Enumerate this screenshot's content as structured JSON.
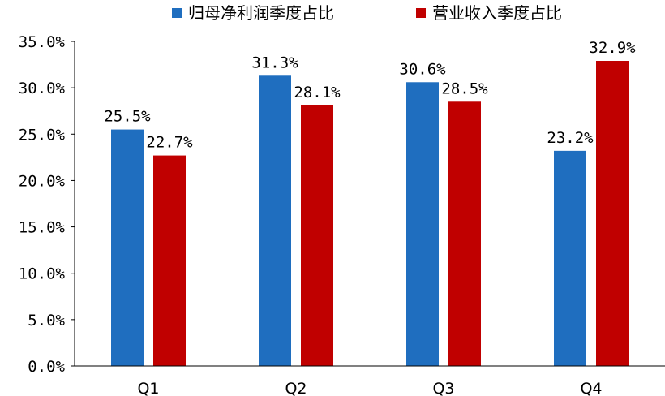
{
  "chart_data": {
    "type": "bar",
    "categories": [
      "Q1",
      "Q2",
      "Q3",
      "Q4"
    ],
    "series": [
      {
        "name": "归母净利润季度占比",
        "values": [
          25.5,
          31.3,
          30.6,
          23.2
        ],
        "labels": [
          "25.5%",
          "31.3%",
          "30.6%",
          "23.2%"
        ],
        "color": "#1f6ebf"
      },
      {
        "name": "营业收入季度占比",
        "values": [
          22.7,
          28.1,
          28.5,
          32.9
        ],
        "labels": [
          "22.7%",
          "28.1%",
          "28.5%",
          "32.9%"
        ],
        "color": "#c00000"
      }
    ],
    "yticks": [
      "0.0%",
      "5.0%",
      "10.0%",
      "15.0%",
      "20.0%",
      "25.0%",
      "30.0%",
      "35.0%"
    ],
    "ylim": [
      0,
      35
    ],
    "legend_position": "top",
    "grid": false
  }
}
